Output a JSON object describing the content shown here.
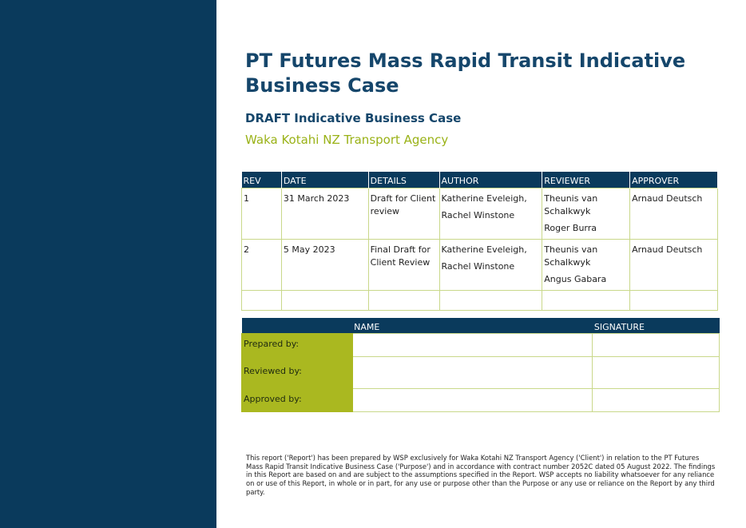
{
  "document": {
    "title": "PT Futures Mass Rapid Transit Indicative Business Case",
    "subtitle": "DRAFT Indicative Business Case",
    "client": "Waka Kotahi NZ Transport Agency"
  },
  "colors": {
    "sidebar": "#0a3a5c",
    "title": "#15466b",
    "accent_green": "#9ab217",
    "label_fill": "#aab820"
  },
  "revision_table": {
    "headers": [
      "REV",
      "DATE",
      "DETAILS",
      "AUTHOR",
      "REVIEWER",
      "APPROVER"
    ],
    "rows": [
      {
        "rev": "1",
        "date": "31 March 2023",
        "details": "Draft for Client review",
        "author_1": "Katherine Eveleigh,",
        "author_2": "Rachel Winstone",
        "reviewer_1": "Theunis van Schalkwyk",
        "reviewer_2": "Roger Burra",
        "approver": "Arnaud Deutsch"
      },
      {
        "rev": "2",
        "date": "5 May 2023",
        "details": "Final Draft for Client Review",
        "author_1": "Katherine Eveleigh,",
        "author_2": "Rachel Winstone",
        "reviewer_1": "Theunis van Schalkwyk",
        "reviewer_2": "Angus Gabara",
        "approver": "Arnaud Deutsch"
      }
    ]
  },
  "signature_table": {
    "headers": [
      "",
      "NAME",
      "SIGNATURE"
    ],
    "rows": [
      "Prepared by:",
      "Reviewed by:",
      "Approved by:"
    ]
  },
  "disclaimer": "This report ('Report') has been prepared by WSP exclusively for Waka Kotahi NZ Transport Agency ('Client') in relation to the PT Futures Mass Rapid Transit Indicative Business Case ('Purpose') and in accordance with contract number 2052C dated 05 August 2022. The findings in this Report are based on and are subject to the assumptions specified in the Report. WSP accepts no liability whatsoever for any reliance on or use of this Report, in whole or in part, for any use or purpose other than the Purpose or any use or reliance on the Report by any third party."
}
